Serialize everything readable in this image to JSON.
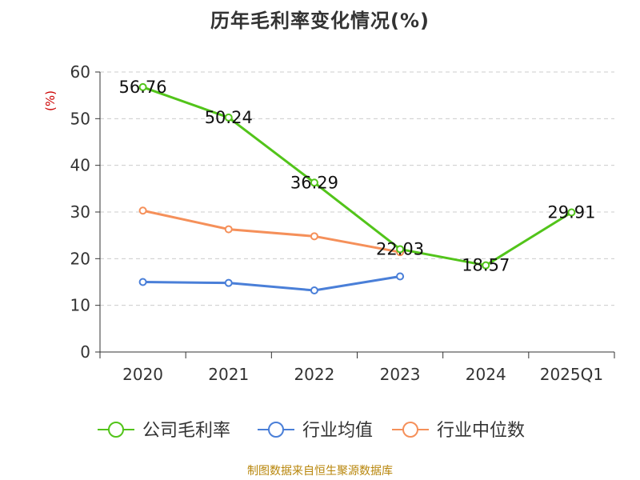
{
  "title": "历年毛利率变化情况(%)",
  "source": "制图数据来自恒生聚源数据库",
  "chart_data": {
    "type": "line",
    "ylabel": "(%)",
    "ylim": [
      0,
      60
    ],
    "yticks": [
      0,
      10,
      20,
      30,
      40,
      50,
      60
    ],
    "categories": [
      "2020",
      "2021",
      "2022",
      "2023",
      "2024",
      "2025Q1"
    ],
    "grid": true,
    "legend_position": "bottom",
    "series": [
      {
        "name": "公司毛利率",
        "color": "#52c41a",
        "values": [
          56.76,
          50.24,
          36.29,
          22.03,
          18.57,
          29.91
        ],
        "data_labels": [
          "56.76",
          "50.24",
          "36.29",
          "22.03",
          "18.57",
          "29.91"
        ]
      },
      {
        "name": "行业均值",
        "color": "#4a7fd8",
        "values": [
          15.0,
          14.8,
          13.2,
          16.2,
          null,
          null
        ]
      },
      {
        "name": "行业中位数",
        "color": "#f5905a",
        "values": [
          30.3,
          26.3,
          24.8,
          21.4,
          null,
          null
        ]
      }
    ]
  }
}
